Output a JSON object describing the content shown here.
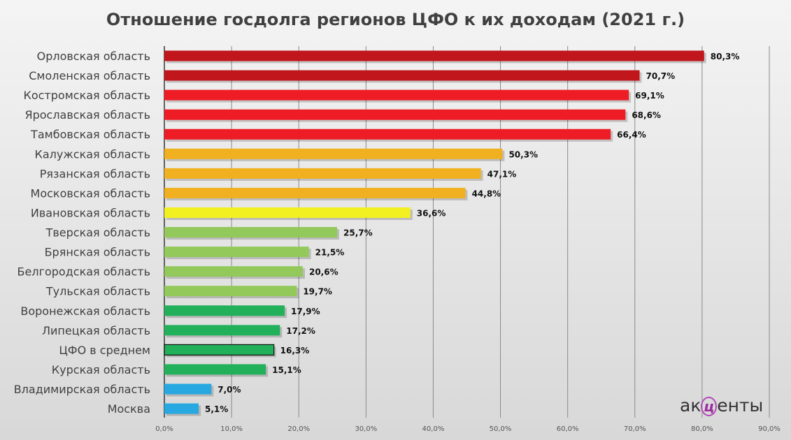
{
  "chart_data": {
    "type": "bar",
    "orientation": "horizontal",
    "title": "Отношение госдолга регионов ЦФО к их доходам (2021 г.)",
    "categories": [
      "Орловская область",
      "Смоленская область",
      "Костромская область",
      "Ярославская область",
      "Тамбовская область",
      "Калужская область",
      "Рязанская область",
      "Московская область",
      "Ивановская область",
      "Тверская область",
      "Брянская область",
      "Белгородская область",
      "Тульская область",
      "Воронежская область",
      "Липецкая область",
      "ЦФО в среднем",
      "Курская область",
      "Владимирская область",
      "Москва"
    ],
    "values": [
      80.3,
      70.7,
      69.1,
      68.6,
      66.4,
      50.3,
      47.1,
      44.8,
      36.6,
      25.7,
      21.5,
      20.6,
      19.7,
      17.9,
      17.2,
      16.3,
      15.1,
      7.0,
      5.1
    ],
    "data_labels": [
      "80,3%",
      "70,7%",
      "69,1%",
      "68,6%",
      "66,4%",
      "50,3%",
      "47,1%",
      "44,8%",
      "36,6%",
      "25,7%",
      "21,5%",
      "20,6%",
      "19,7%",
      "17,9%",
      "17,2%",
      "16,3%",
      "15,1%",
      "7,0%",
      "5,1%"
    ],
    "colors": [
      "#c0161c",
      "#c0161c",
      "#ee1c24",
      "#ee1c24",
      "#ee1c24",
      "#f0b020",
      "#f0b020",
      "#f0b020",
      "#f2f020",
      "#92c95a",
      "#92c95a",
      "#92c95a",
      "#92c95a",
      "#22b05a",
      "#22b05a",
      "#22b05a",
      "#22b05a",
      "#28a8e0",
      "#28a8e0"
    ],
    "highlight": "ЦФО в среднем",
    "xlim": [
      0,
      90
    ],
    "xticks": [
      "0,0%",
      "10,0%",
      "20,0%",
      "30,0%",
      "40,0%",
      "50,0%",
      "60,0%",
      "70,0%",
      "80,0%",
      "90,0%"
    ],
    "grid": true
  },
  "logo": {
    "pre": "ак",
    "mid": "ц",
    "post": "енты"
  }
}
